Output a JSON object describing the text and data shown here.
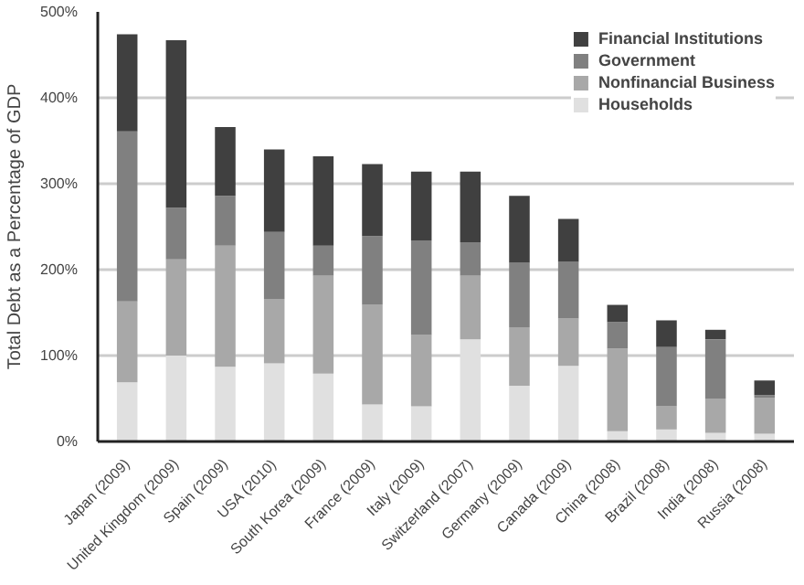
{
  "chart_data": {
    "type": "bar",
    "stacked": true,
    "ylabel": "Total Debt as a Percentage of GDP",
    "categories": [
      "Japan (2009)",
      "United Kingdom (2009)",
      "Spain (2009)",
      "USA (2010)",
      "South Korea (2009)",
      "France (2009)",
      "Italy (2009)",
      "Switzerland (2007)",
      "Germany (2009)",
      "Canada (2009)",
      "China (2008)",
      "Brazil (2008)",
      "India (2008)",
      "Russia (2008)"
    ],
    "series": [
      {
        "name": "Households",
        "color": "#e0e0e0",
        "values": [
          69,
          100,
          87,
          91,
          79,
          43,
          41,
          119,
          65,
          88,
          12,
          14,
          10,
          9
        ]
      },
      {
        "name": "Nonfinancial Business",
        "color": "#a8a8a8",
        "values": [
          94,
          112,
          141,
          75,
          114,
          116,
          83,
          74,
          68,
          55,
          96,
          27,
          40,
          42
        ]
      },
      {
        "name": "Government",
        "color": "#808080",
        "values": [
          198,
          60,
          58,
          78,
          35,
          80,
          110,
          39,
          75,
          66,
          31,
          69,
          69,
          3
        ]
      },
      {
        "name": "Financial Institutions",
        "color": "#404040",
        "values": [
          113,
          195,
          80,
          96,
          104,
          84,
          80,
          82,
          78,
          50,
          20,
          31,
          11,
          17
        ]
      }
    ],
    "ylim": [
      0,
      500
    ],
    "yticks": [
      {
        "value": 0,
        "label": "0%"
      },
      {
        "value": 100,
        "label": "100%"
      },
      {
        "value": 200,
        "label": "200%"
      },
      {
        "value": 300,
        "label": "300%"
      },
      {
        "value": 400,
        "label": "400%"
      },
      {
        "value": 500,
        "label": "500%"
      }
    ],
    "grid": "y",
    "legend": "top right"
  }
}
